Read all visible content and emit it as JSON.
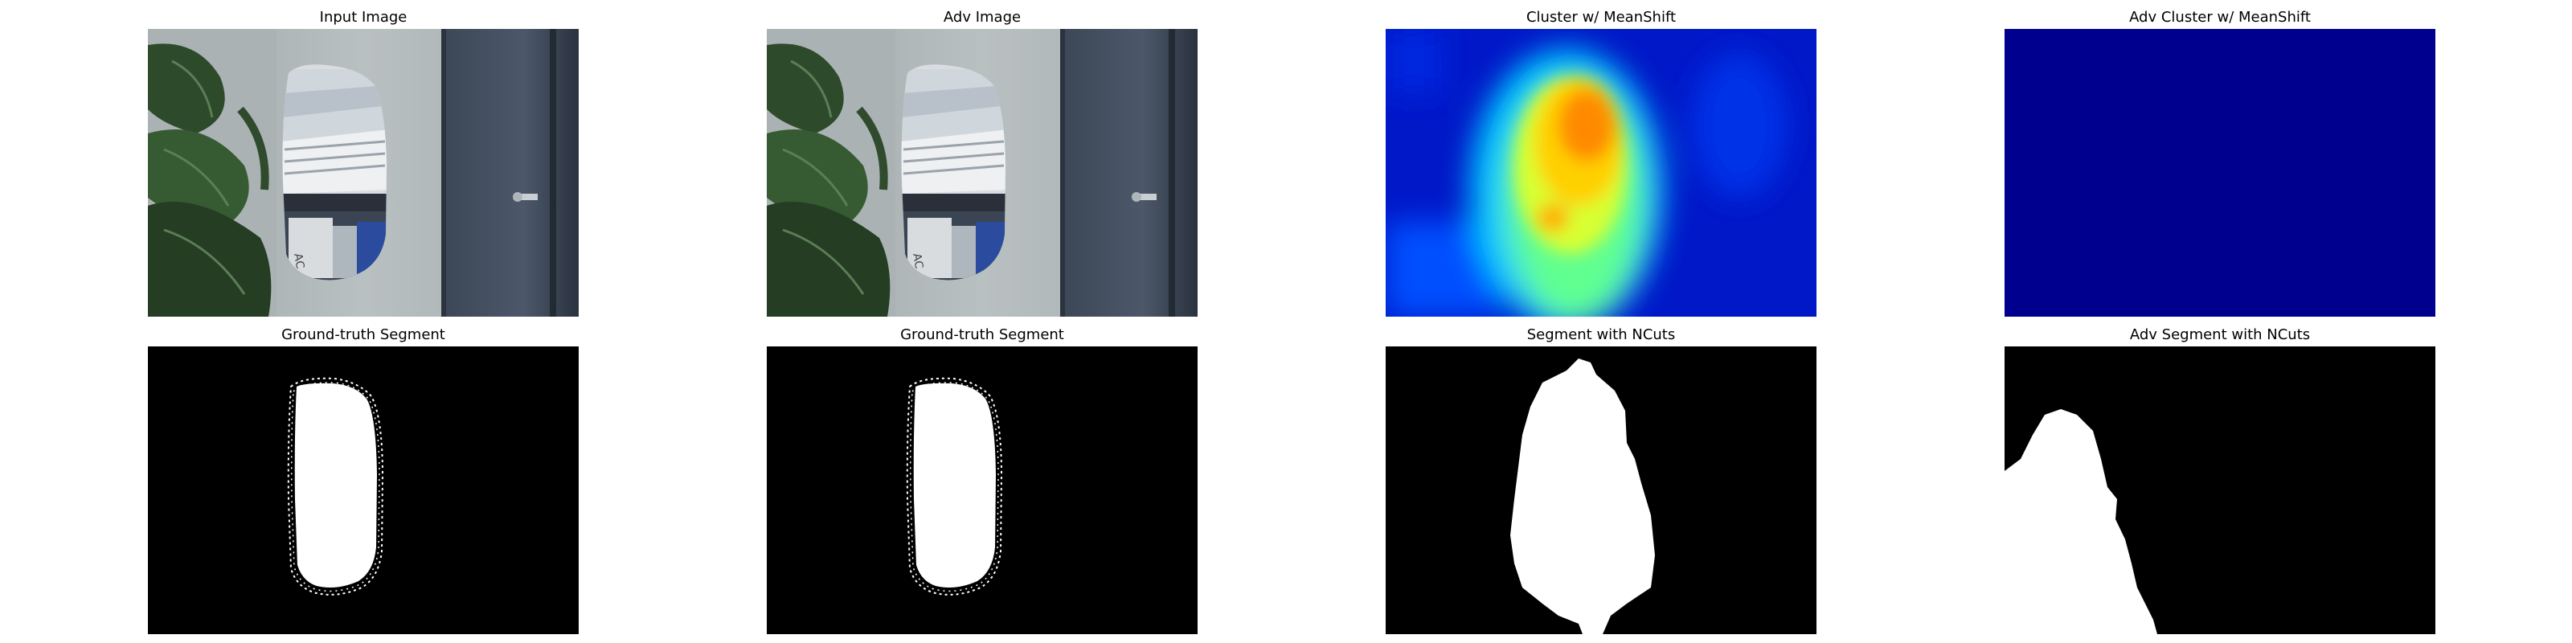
{
  "panels": [
    {
      "title": "Input Image"
    },
    {
      "title": "Adv Image"
    },
    {
      "title": "Cluster w/ MeanShift"
    },
    {
      "title": "Adv Cluster w/ MeanShift"
    },
    {
      "title": "Ground-truth Segment"
    },
    {
      "title": "Ground-truth Segment"
    },
    {
      "title": "Segment with NCuts"
    },
    {
      "title": "Adv Segment with NCuts"
    }
  ],
  "photo_labels": {
    "box_text": "AC"
  },
  "colors": {
    "background": "#ffffff",
    "mask_foreground": "#ffffff",
    "mask_background": "#000000",
    "adv_cluster_fill": "#00008f"
  }
}
